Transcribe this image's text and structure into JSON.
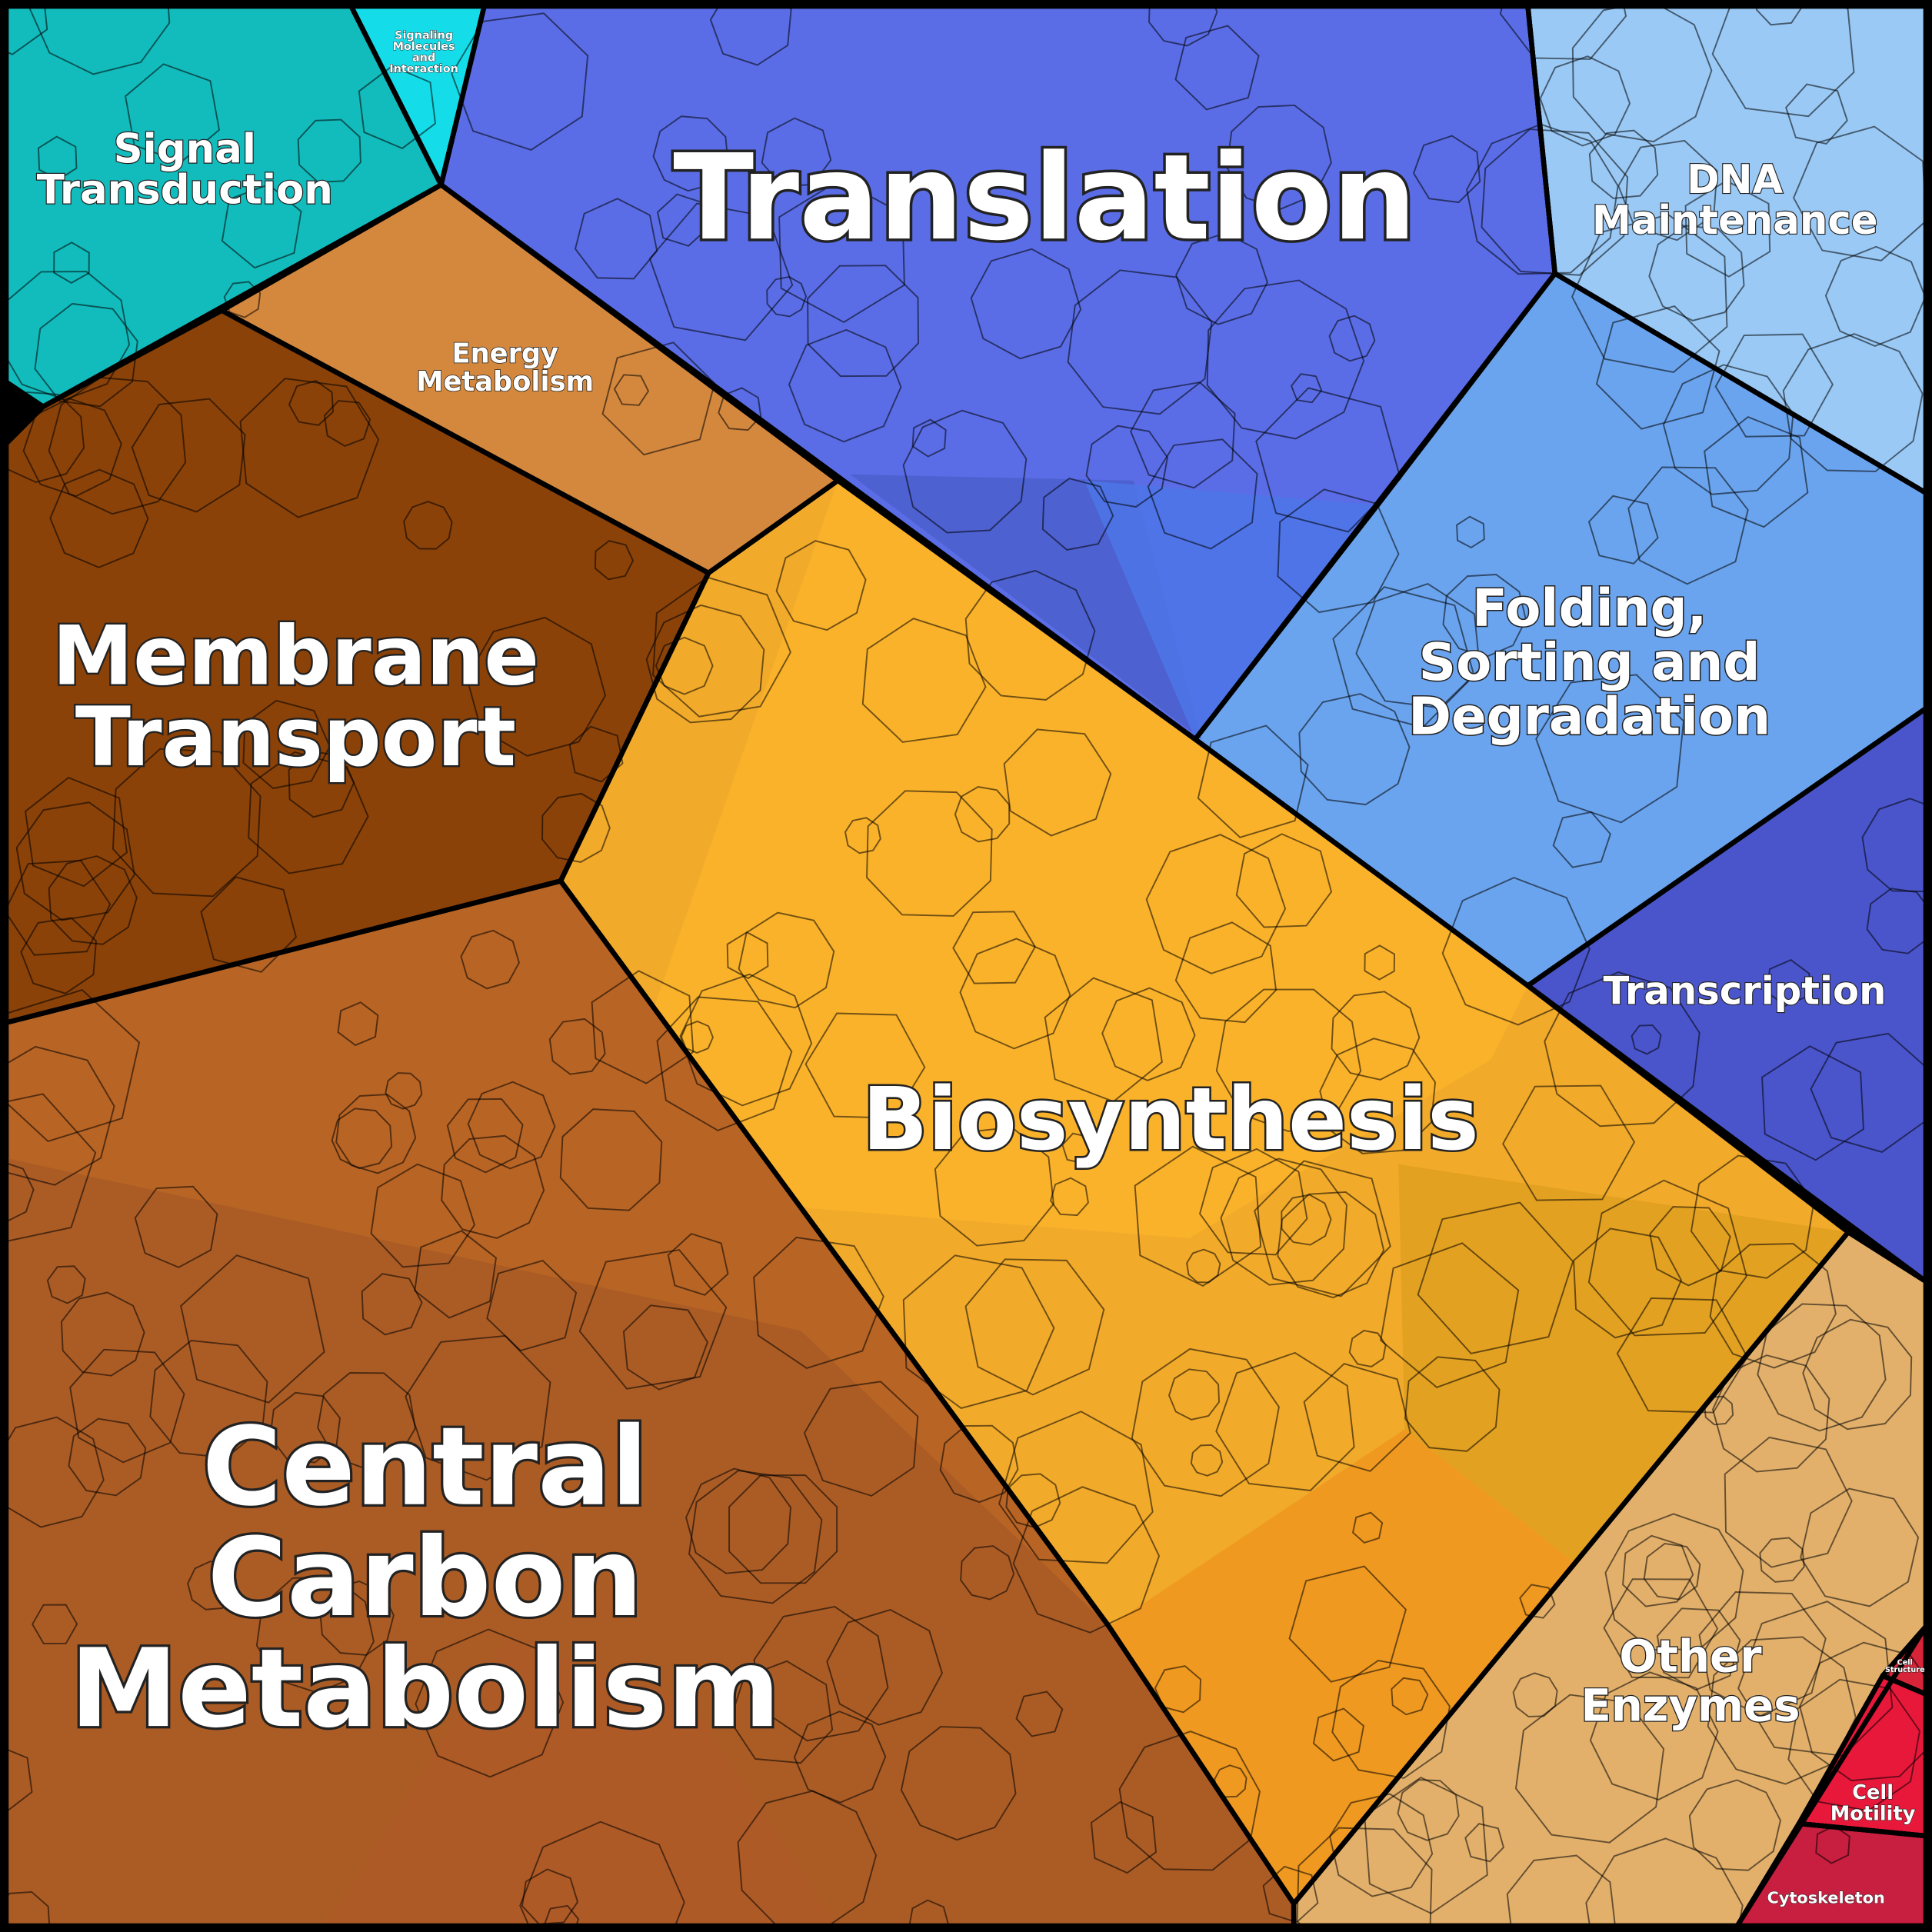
{
  "regions": [
    {
      "lines": [
        "Signal",
        "Transduction"
      ]
    },
    {
      "lines": [
        "Signaling",
        "Molecules",
        "and",
        "Interaction"
      ]
    },
    {
      "lines": [
        "Translation"
      ]
    },
    {
      "lines": [
        "DNA",
        "Maintenance"
      ]
    },
    {
      "lines": [
        "Energy",
        "Metabolism"
      ]
    },
    {
      "lines": [
        "Membrane",
        "Transport"
      ]
    },
    {
      "lines": [
        "Folding,",
        "Sorting and",
        "Degradation"
      ]
    },
    {
      "lines": [
        "Transcription"
      ]
    },
    {
      "lines": [
        "Biosynthesis"
      ]
    },
    {
      "lines": [
        "Central",
        "Carbon",
        "Metabolism"
      ]
    },
    {
      "lines": [
        "Other",
        "Enzymes"
      ]
    },
    {
      "lines": [
        "Cell",
        "Structure"
      ]
    },
    {
      "lines": [
        "Cell",
        "Motility"
      ]
    },
    {
      "lines": [
        "Cytoskeleton"
      ]
    }
  ]
}
